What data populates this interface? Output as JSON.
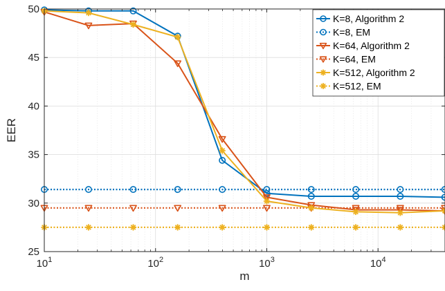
{
  "chart_data": {
    "type": "line",
    "xlabel": "m",
    "ylabel": "EER",
    "xscale": "log",
    "xlim": [
      10,
      40000
    ],
    "ylim": [
      25,
      50
    ],
    "grid": true,
    "legend_position": "top-right",
    "x_ticks": [
      {
        "value": 10,
        "base": "10",
        "exp": "1"
      },
      {
        "value": 100,
        "base": "10",
        "exp": "2"
      },
      {
        "value": 1000,
        "base": "10",
        "exp": "3"
      },
      {
        "value": 10000,
        "base": "10",
        "exp": "4"
      }
    ],
    "y_ticks": [
      25,
      30,
      35,
      40,
      45,
      50
    ],
    "x": [
      10,
      25,
      63,
      158,
      398,
      1000,
      2512,
      6310,
      15849,
      39811
    ],
    "series": [
      {
        "name": "K=8, Algorithm 2",
        "color": "#0072BD",
        "marker": "circle",
        "style": "solid",
        "values": [
          49.9,
          49.8,
          49.8,
          47.2,
          34.4,
          31.0,
          30.7,
          30.7,
          30.7,
          30.6
        ]
      },
      {
        "name": "K=8, EM",
        "color": "#0072BD",
        "marker": "circle",
        "style": "dotted",
        "values": [
          31.4,
          31.4,
          31.4,
          31.4,
          31.4,
          31.4,
          31.4,
          31.4,
          31.4,
          31.4
        ]
      },
      {
        "name": "K=64, Algorithm 2",
        "color": "#D95319",
        "marker": "triangle-down",
        "style": "solid",
        "values": [
          49.7,
          48.3,
          48.5,
          44.4,
          36.6,
          30.6,
          29.8,
          29.3,
          29.3,
          29.2
        ]
      },
      {
        "name": "K=64, EM",
        "color": "#D95319",
        "marker": "triangle-down",
        "style": "dotted",
        "values": [
          29.5,
          29.5,
          29.5,
          29.5,
          29.5,
          29.5,
          29.5,
          29.5,
          29.5,
          29.5
        ]
      },
      {
        "name": "K=512, Algorithm 2",
        "color": "#EDB120",
        "marker": "star",
        "style": "solid",
        "values": [
          49.8,
          49.6,
          48.4,
          47.1,
          35.4,
          30.2,
          29.5,
          29.1,
          29.0,
          29.2
        ]
      },
      {
        "name": "K=512, EM",
        "color": "#EDB120",
        "marker": "star",
        "style": "dotted",
        "values": [
          27.5,
          27.5,
          27.5,
          27.5,
          27.5,
          27.5,
          27.5,
          27.5,
          27.5,
          27.5
        ]
      }
    ]
  }
}
